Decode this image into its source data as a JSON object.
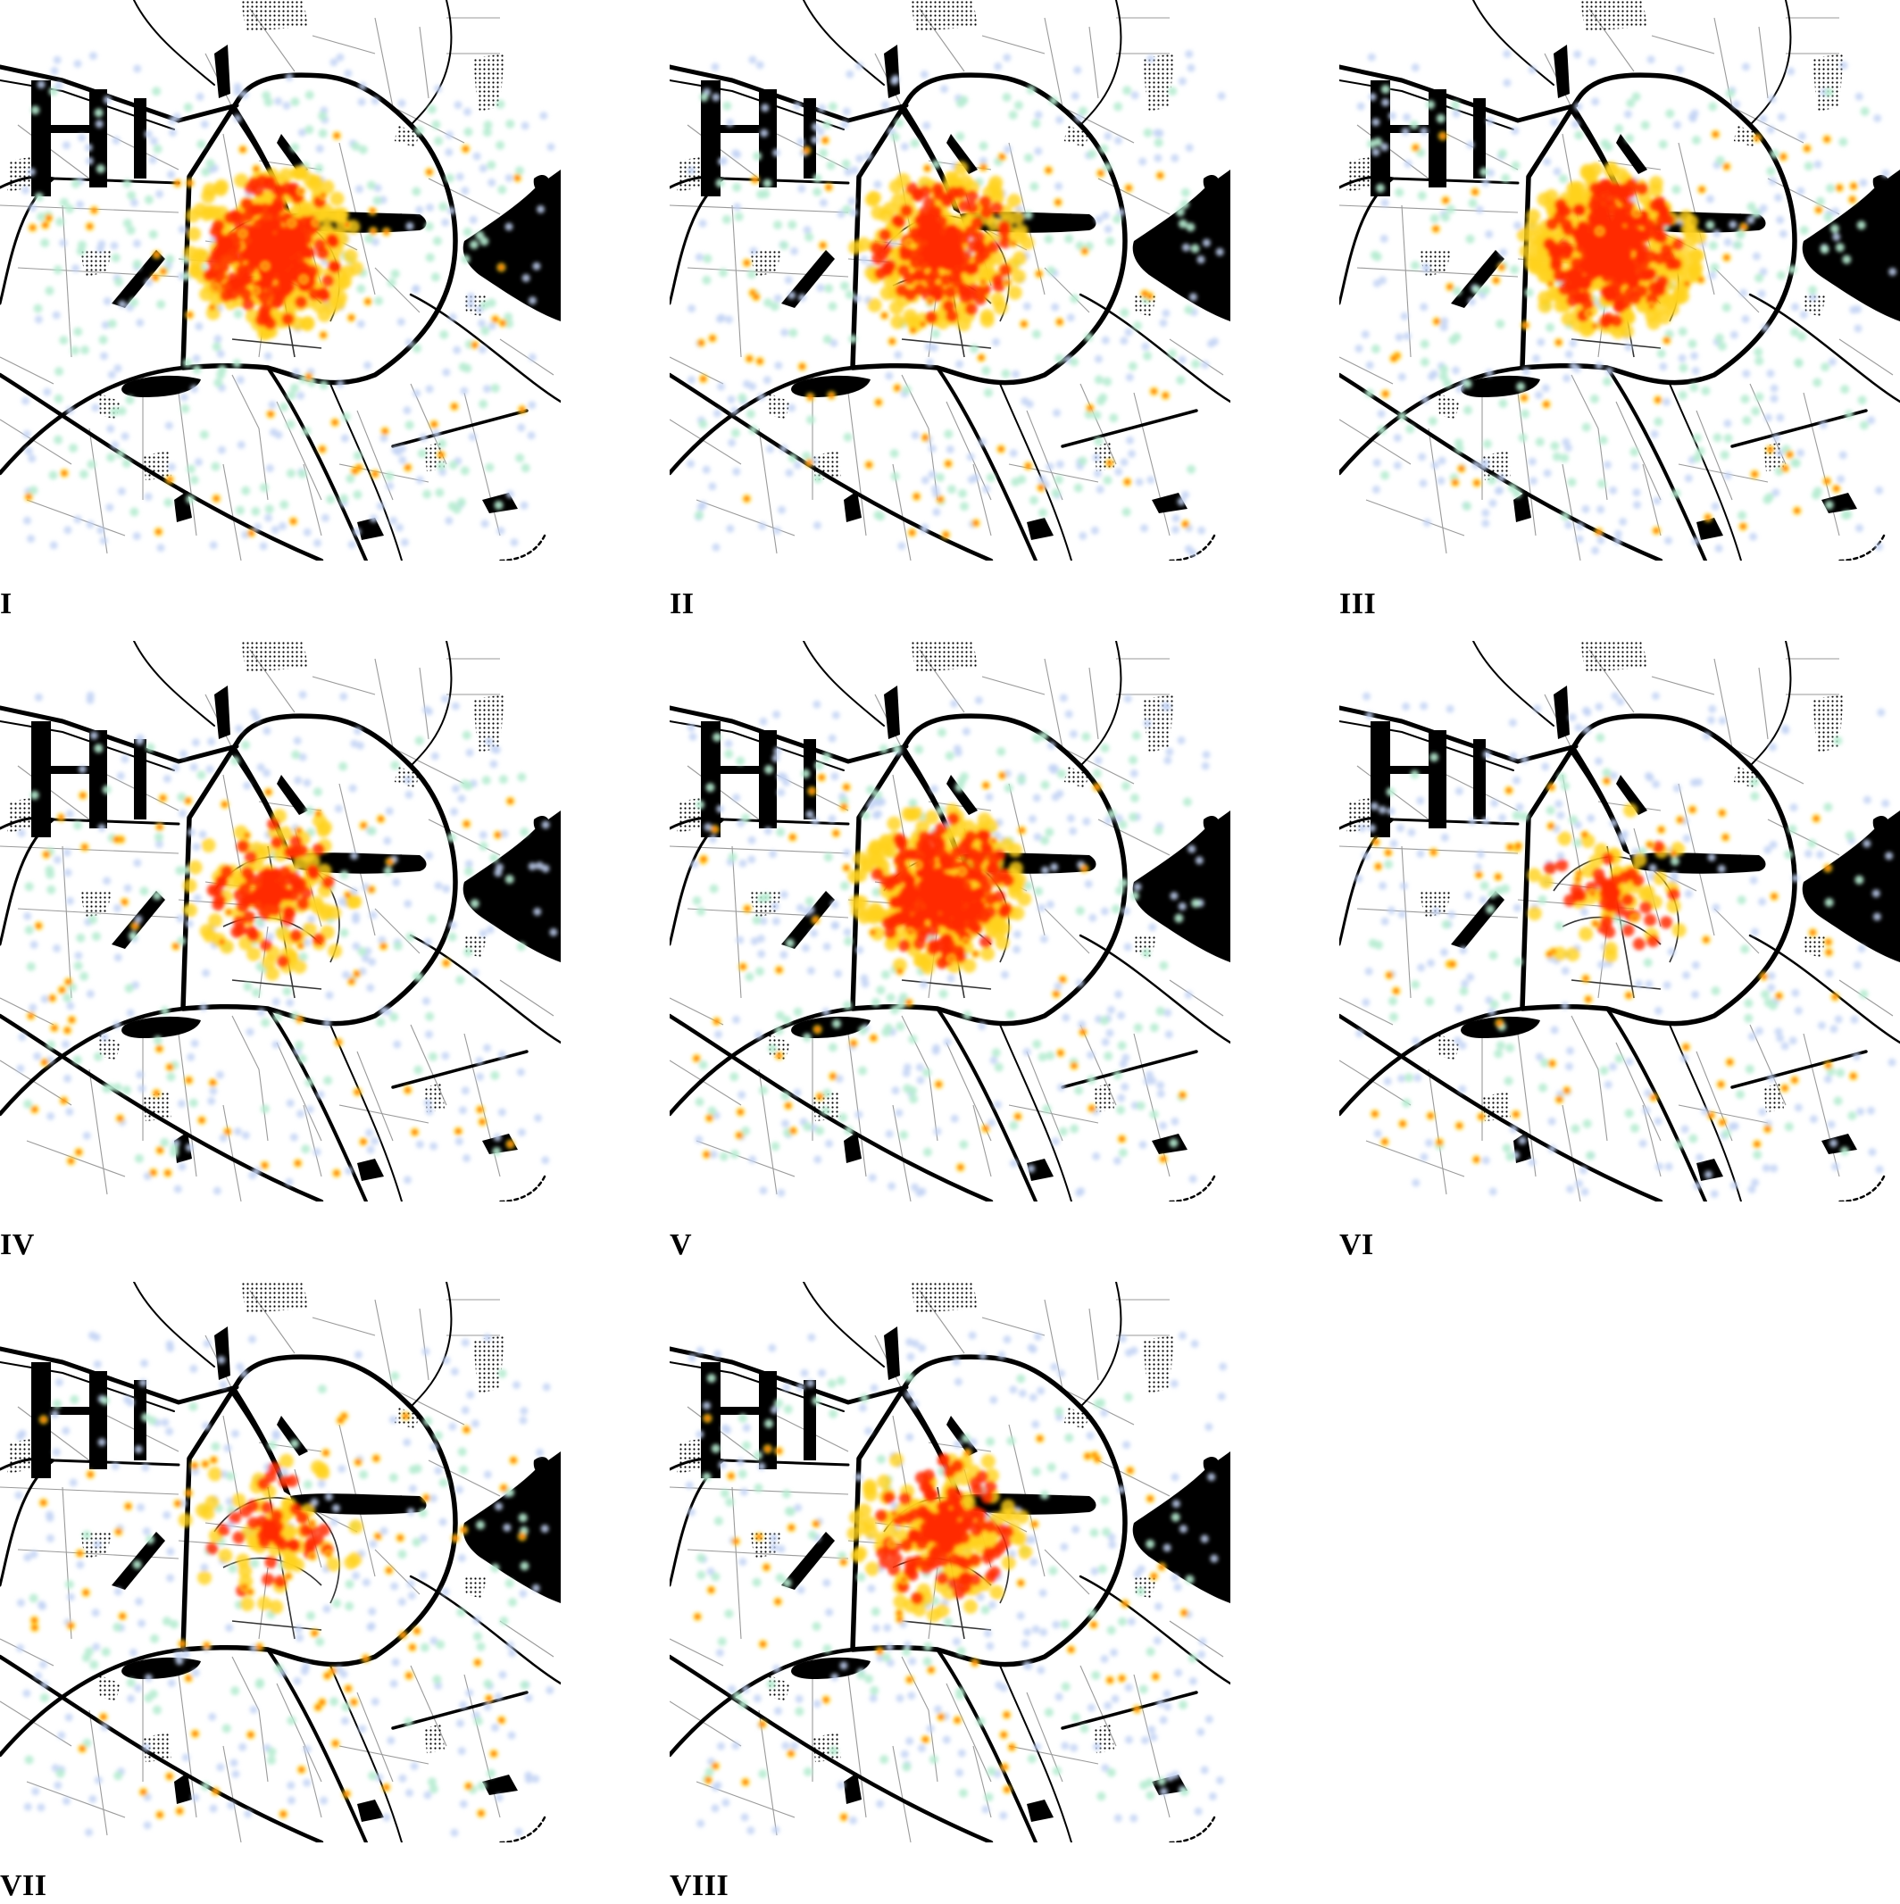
{
  "figure": {
    "panels": [
      {
        "label": "I",
        "intensity": 1.0,
        "center_weight": 0.85
      },
      {
        "label": "II",
        "intensity": 0.8,
        "center_weight": 0.7
      },
      {
        "label": "III",
        "intensity": 1.0,
        "center_weight": 0.95
      },
      {
        "label": "IV",
        "intensity": 0.55,
        "center_weight": 0.45
      },
      {
        "label": "V",
        "intensity": 0.9,
        "center_weight": 0.85
      },
      {
        "label": "VI",
        "intensity": 0.35,
        "center_weight": 0.35
      },
      {
        "label": "VII",
        "intensity": 0.45,
        "center_weight": 0.3
      },
      {
        "label": "VIII",
        "intensity": 0.6,
        "center_weight": 0.7
      }
    ],
    "heat_colors": {
      "high": "#ff2a00",
      "mid": "#ffd21a",
      "low": "#b7ecd2",
      "sparse": "#c3d4f5"
    },
    "map_colors": {
      "road": "#000000",
      "minor_road": "#9a9a9a",
      "water": "#000000"
    }
  }
}
